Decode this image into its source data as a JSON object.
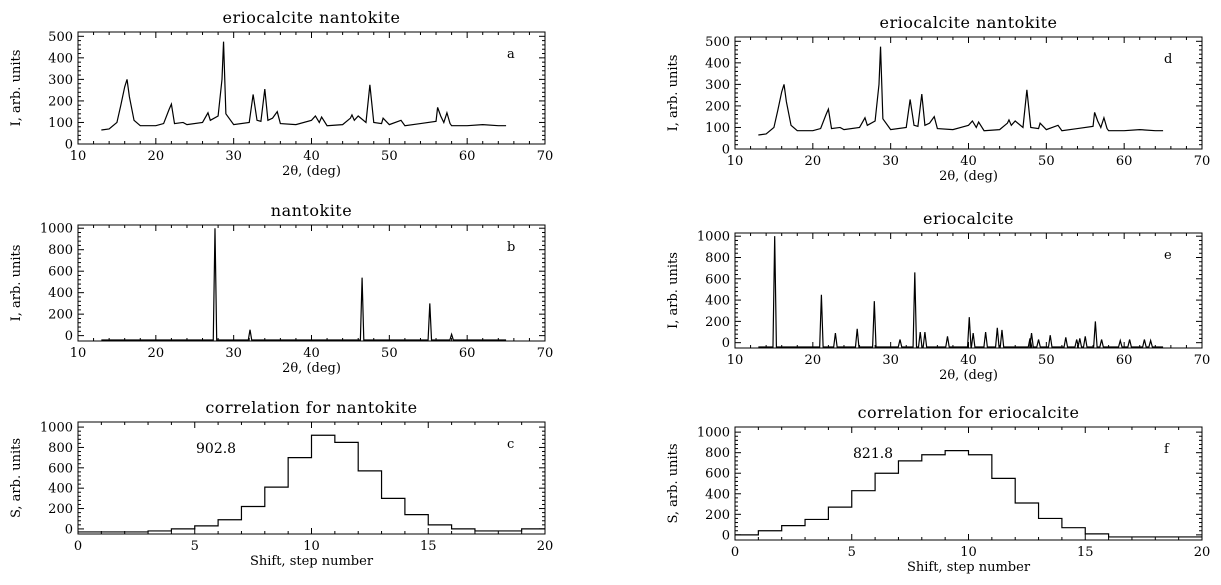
{
  "chart_data": [
    {
      "id": "a",
      "type": "line",
      "title": "eriocalcite    nantokite",
      "xlabel": "2θ, (deg)",
      "ylabel": "I, arb. units",
      "xlim": [
        10,
        70
      ],
      "ylim": [
        0,
        520
      ],
      "xticks": [
        10,
        20,
        30,
        40,
        50,
        60,
        70
      ],
      "yticks": [
        0,
        100,
        200,
        300,
        400,
        500
      ],
      "corner_label": "a",
      "x": [
        13.0,
        14.0,
        15.0,
        15.5,
        16.0,
        16.3,
        16.6,
        17.2,
        18.0,
        20.0,
        21.0,
        21.7,
        22.0,
        22.4,
        23.5,
        24.0,
        26.0,
        26.7,
        27.0,
        28.0,
        28.5,
        28.7,
        29.0,
        30.0,
        32.0,
        32.5,
        33.0,
        33.5,
        34.0,
        34.4,
        35.0,
        35.6,
        36.0,
        38.0,
        40.0,
        40.5,
        41.0,
        41.3,
        42.0,
        44.0,
        45.0,
        45.2,
        45.5,
        46.0,
        47.0,
        47.5,
        48.0,
        49.0,
        49.2,
        50.0,
        51.5,
        52.0,
        54.0,
        56.0,
        56.2,
        56.6,
        57.0,
        57.4,
        57.8,
        58.0,
        60.0,
        62.0,
        64.0,
        65.0
      ],
      "y": [
        65,
        70,
        100,
        180,
        265,
        300,
        220,
        110,
        85,
        85,
        95,
        160,
        185,
        95,
        100,
        90,
        100,
        145,
        110,
        130,
        300,
        475,
        140,
        90,
        100,
        230,
        110,
        105,
        255,
        110,
        120,
        150,
        95,
        90,
        110,
        130,
        100,
        125,
        85,
        90,
        120,
        135,
        110,
        130,
        100,
        275,
        100,
        95,
        120,
        90,
        110,
        85,
        95,
        105,
        170,
        130,
        100,
        145,
        95,
        85,
        85,
        90,
        85,
        85
      ]
    },
    {
      "id": "b",
      "type": "line",
      "title": "nantokite",
      "xlabel": "2θ, (deg)",
      "ylabel": "I, arb. units",
      "xlim": [
        10,
        70
      ],
      "ylim": [
        -50,
        1030
      ],
      "xticks": [
        10,
        20,
        30,
        40,
        50,
        60,
        70
      ],
      "yticks": [
        0,
        200,
        400,
        600,
        800,
        1000
      ],
      "corner_label": "b",
      "peaks_x": [
        27.6,
        32.1,
        46.5,
        55.2,
        58.0
      ],
      "peaks_y": [
        1000,
        55,
        540,
        300,
        12
      ],
      "baseline": -40
    },
    {
      "id": "c",
      "type": "line",
      "title": "correlation for nantokite",
      "xlabel": "Shift, step number",
      "ylabel": "S, arb. units",
      "xlim": [
        0,
        20
      ],
      "ylim": [
        -50,
        1050
      ],
      "xticks": [
        0,
        5,
        10,
        15,
        20
      ],
      "yticks": [
        0,
        200,
        400,
        600,
        800,
        1000
      ],
      "corner_label": "c",
      "annotation": "902.8",
      "steps_x": [
        0,
        1,
        2,
        3,
        4,
        5,
        6,
        7,
        8,
        9,
        10,
        11,
        12,
        13,
        14,
        15,
        16,
        17,
        18,
        19,
        20
      ],
      "steps_y": [
        -30,
        -30,
        -30,
        -20,
        0,
        30,
        90,
        220,
        410,
        700,
        920,
        850,
        570,
        300,
        140,
        40,
        0,
        -20,
        -20,
        0
      ]
    },
    {
      "id": "d",
      "type": "line",
      "title": "eriocalcite    nantokite",
      "xlabel": "2θ, (deg)",
      "ylabel": "I, arb. units",
      "xlim": [
        10,
        70
      ],
      "ylim": [
        0,
        520
      ],
      "xticks": [
        10,
        20,
        30,
        40,
        50,
        60,
        70
      ],
      "yticks": [
        0,
        100,
        200,
        300,
        400,
        500
      ],
      "corner_label": "d",
      "x": [
        13.0,
        14.0,
        15.0,
        15.5,
        16.0,
        16.3,
        16.6,
        17.2,
        18.0,
        20.0,
        21.0,
        21.7,
        22.0,
        22.4,
        23.5,
        24.0,
        26.0,
        26.7,
        27.0,
        28.0,
        28.5,
        28.7,
        29.0,
        30.0,
        32.0,
        32.5,
        33.0,
        33.5,
        34.0,
        34.4,
        35.0,
        35.6,
        36.0,
        38.0,
        40.0,
        40.5,
        41.0,
        41.3,
        42.0,
        44.0,
        45.0,
        45.2,
        45.5,
        46.0,
        47.0,
        47.5,
        48.0,
        49.0,
        49.2,
        50.0,
        51.5,
        52.0,
        54.0,
        56.0,
        56.2,
        56.6,
        57.0,
        57.4,
        57.8,
        58.0,
        60.0,
        62.0,
        64.0,
        65.0
      ],
      "y": [
        65,
        70,
        100,
        180,
        265,
        300,
        220,
        110,
        85,
        85,
        95,
        160,
        185,
        95,
        100,
        90,
        100,
        145,
        110,
        130,
        300,
        475,
        140,
        90,
        100,
        230,
        110,
        105,
        255,
        110,
        120,
        150,
        95,
        90,
        110,
        130,
        100,
        125,
        85,
        90,
        120,
        135,
        110,
        130,
        100,
        275,
        100,
        95,
        120,
        90,
        110,
        85,
        95,
        105,
        170,
        130,
        100,
        145,
        95,
        85,
        85,
        90,
        85,
        85
      ]
    },
    {
      "id": "e",
      "type": "line",
      "title": "eriocalcite",
      "xlabel": "2θ, (deg)",
      "ylabel": "I, arb. units",
      "xlim": [
        10,
        70
      ],
      "ylim": [
        -50,
        1030
      ],
      "xticks": [
        10,
        20,
        30,
        40,
        50,
        60,
        70
      ],
      "yticks": [
        0,
        200,
        400,
        600,
        800,
        1000
      ],
      "corner_label": "e",
      "peaks_x": [
        15.1,
        21.1,
        22.9,
        25.7,
        27.9,
        31.2,
        33.1,
        33.8,
        34.4,
        37.3,
        40.1,
        40.6,
        42.2,
        43.7,
        44.3,
        47.9,
        48.1,
        49.0,
        50.5,
        52.5,
        53.9,
        54.3,
        55.0,
        56.3,
        57.1,
        59.5,
        60.7,
        62.6,
        63.4
      ],
      "peaks_y": [
        1000,
        450,
        90,
        130,
        390,
        30,
        660,
        100,
        100,
        60,
        240,
        90,
        100,
        140,
        120,
        40,
        90,
        30,
        70,
        50,
        30,
        40,
        60,
        200,
        30,
        20,
        30,
        30,
        20
      ],
      "baseline": -40
    },
    {
      "id": "f",
      "type": "line",
      "title": "correlation for eriocalcite",
      "xlabel": "Shift, step number",
      "ylabel": "S, arb. units",
      "xlim": [
        0,
        20
      ],
      "ylim": [
        -50,
        1050
      ],
      "xticks": [
        0,
        5,
        10,
        15,
        20
      ],
      "yticks": [
        0,
        200,
        400,
        600,
        800,
        1000
      ],
      "corner_label": "f",
      "annotation": "821.8",
      "steps_x": [
        0,
        1,
        2,
        3,
        4,
        5,
        6,
        7,
        8,
        9,
        10,
        11,
        12,
        13,
        14,
        15,
        16,
        17,
        18,
        19,
        20
      ],
      "steps_y": [
        0,
        40,
        90,
        150,
        270,
        430,
        600,
        720,
        780,
        820,
        780,
        550,
        310,
        160,
        70,
        10,
        -20,
        -20,
        -20,
        -20
      ]
    }
  ]
}
